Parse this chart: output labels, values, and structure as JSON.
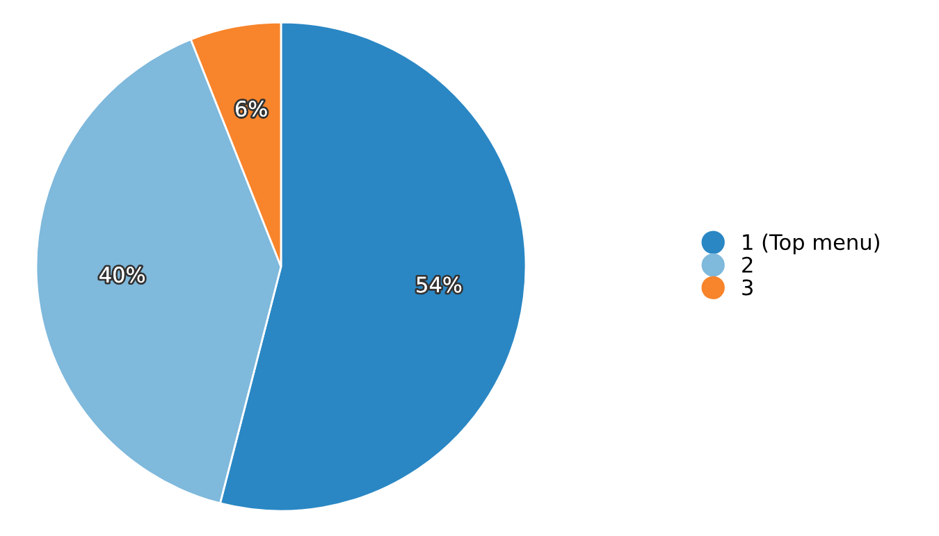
{
  "chart_data": {
    "type": "pie",
    "categories": [
      "1 (Top menu)",
      "2",
      "3"
    ],
    "values": [
      54,
      40,
      6
    ],
    "colors": [
      "#2a87c4",
      "#7fb9dc",
      "#f8842b"
    ],
    "value_labels": [
      "54%",
      "40%",
      "6%"
    ],
    "legend": "right"
  }
}
